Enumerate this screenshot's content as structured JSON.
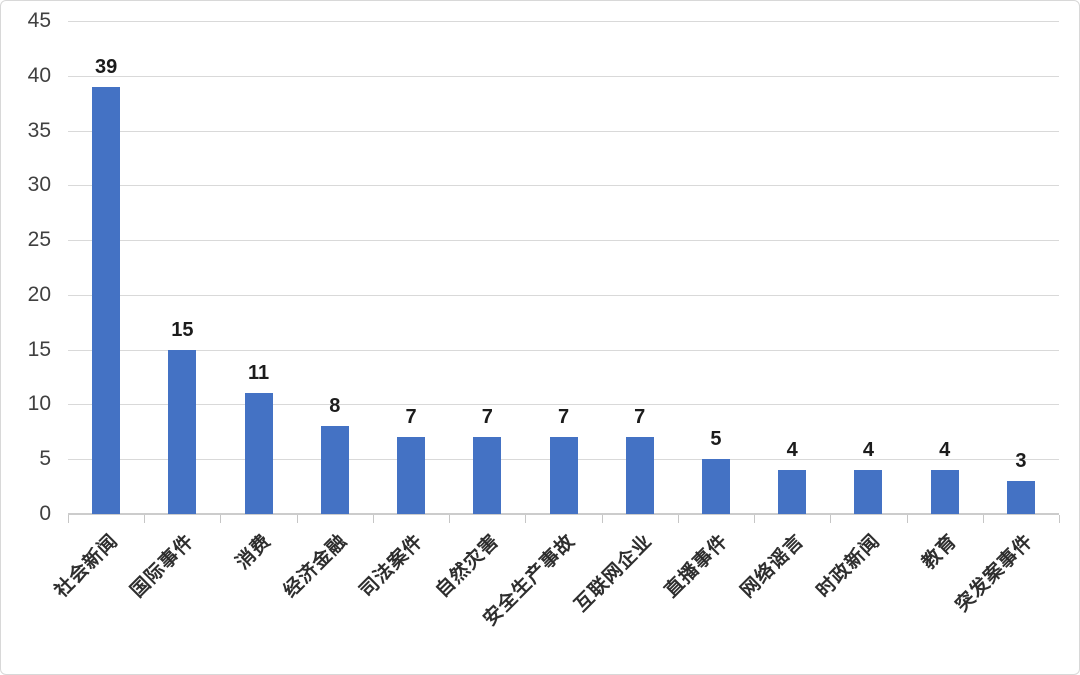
{
  "chart_data": {
    "type": "bar",
    "categories": [
      "社会新闻",
      "国际事件",
      "消费",
      "经济金融",
      "司法案件",
      "自然灾害",
      "安全生产事故",
      "互联网企业",
      "直播事件",
      "网络谣言",
      "时政新闻",
      "教育",
      "突发案事件"
    ],
    "values": [
      39,
      15,
      11,
      8,
      7,
      7,
      7,
      7,
      5,
      4,
      4,
      4,
      3
    ],
    "data_labels": [
      "39",
      "15",
      "11",
      "8",
      "7",
      "7",
      "7",
      "7",
      "5",
      "4",
      "4",
      "4",
      "3"
    ],
    "title": "",
    "xlabel": "",
    "ylabel": "",
    "ylim": [
      0,
      45
    ],
    "ytick_step": 5,
    "ytick_labels": [
      "0",
      "5",
      "10",
      "15",
      "20",
      "25",
      "30",
      "35",
      "40",
      "45"
    ],
    "grid": true,
    "legend_position": "none",
    "bar_color": "#4472C4",
    "gridline_color": "#d9d9d9",
    "axis_line_color": "#cccccc",
    "ytick_label_color": "#404040",
    "value_label_color": "#1c1c1c",
    "category_label_color": "#2e2e2e",
    "category_label_rotation_deg": -45
  }
}
